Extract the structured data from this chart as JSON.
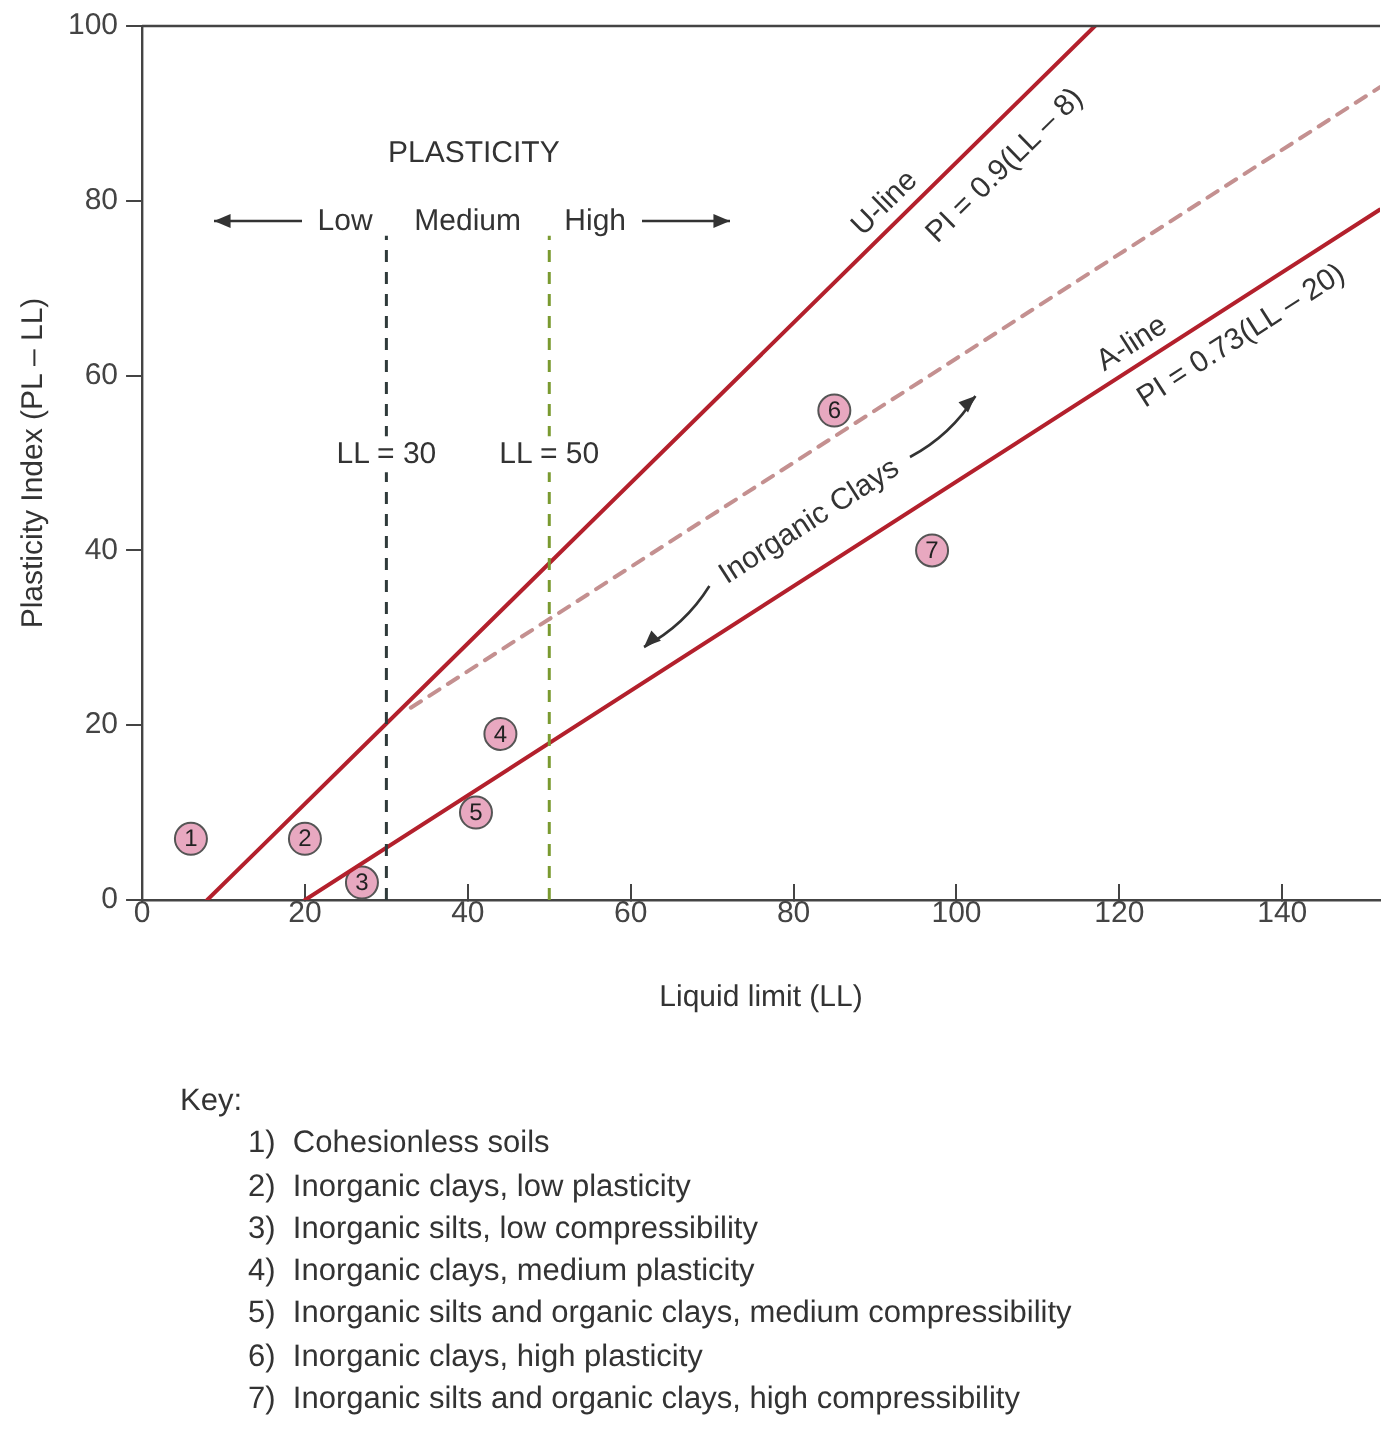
{
  "chart_data": {
    "type": "line",
    "xlabel": "Liquid limit (LL)",
    "ylabel": "Plasticity Index (PL – LL)",
    "xlim": [
      0,
      152
    ],
    "xticks": [
      0,
      20,
      40,
      60,
      80,
      100,
      120,
      140
    ],
    "ylim": [
      0,
      100
    ],
    "yticks": [
      0,
      20,
      40,
      60,
      80,
      100
    ],
    "grid": false,
    "legend": false,
    "series": [
      {
        "name": "U-line",
        "color": "#b3202c",
        "x": [
          8,
          117
        ],
        "values": [
          0,
          100
        ]
      },
      {
        "name": "A-line",
        "color": "#b3202c",
        "x": [
          20,
          152
        ],
        "values": [
          0,
          79
        ]
      },
      {
        "color": "#c49090",
        "line_style": "dashed",
        "x": [
          33,
          152
        ],
        "values": [
          22,
          93
        ]
      },
      {
        "type": "scatter",
        "color": "#e8a8c0",
        "marker": "circle",
        "x": [
          6,
          20,
          27,
          44,
          41,
          85,
          97
        ],
        "values": [
          7,
          7,
          2,
          19,
          10,
          56,
          40
        ]
      }
    ],
    "ref_lines": [
      {
        "axis": "x",
        "value": 30,
        "label": "LL = 30",
        "color": "#2f3a3a",
        "line_style": "dashed"
      },
      {
        "axis": "x",
        "value": 50,
        "label": "LL = 50",
        "color": "#7a9a30",
        "line_style": "dashed"
      }
    ],
    "annotations": [
      "PLASTICITY",
      "Low",
      "Medium",
      "High",
      "PI = 0.9(LL – 8)",
      "PI = 0.73(LL – 20)",
      "Inorganic Clays",
      {
        "text": "1",
        "x": 6,
        "y": 7
      },
      {
        "text": "2",
        "x": 20,
        "y": 7
      },
      {
        "text": "3",
        "x": 27,
        "y": 2
      },
      {
        "text": "4",
        "x": 44,
        "y": 19
      },
      {
        "text": "5",
        "x": 41,
        "y": 10
      },
      {
        "text": "6",
        "x": 85,
        "y": 56
      },
      {
        "text": "7",
        "x": 97,
        "y": 40
      },
      "Key:",
      "1)  Cohesionless soils",
      "2)  Inorganic clays, low plasticity",
      "3)  Inorganic silts, low compressibility",
      "4)  Inorganic clays, medium plasticity",
      "5)  Inorganic silts and organic clays, medium compressibility",
      "6)  Inorganic clays, high plasticity",
      "7)  Inorganic silts and organic clays, high compressibility"
    ]
  }
}
